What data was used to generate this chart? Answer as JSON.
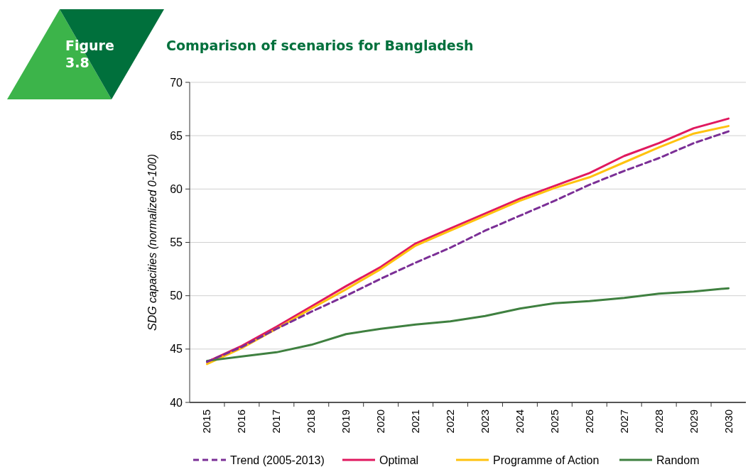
{
  "chart_data": {
    "type": "line",
    "title": "Comparison of scenarios for Bangladesh",
    "ylabel": "SDG capacities (normalized 0-100)",
    "annotations": [
      "Figure 3.8"
    ],
    "categories": [
      "2015",
      "2016",
      "2017",
      "2018",
      "2019",
      "2020",
      "2021",
      "2022",
      "2023",
      "2024",
      "2025",
      "2026",
      "2027",
      "2028",
      "2029",
      "2030"
    ],
    "ylim": [
      40,
      70
    ],
    "yticks": [
      40,
      45,
      50,
      55,
      60,
      65,
      70
    ],
    "grid": "y",
    "legend": "bottom",
    "series": [
      {
        "name": "Trend (2005-2013)",
        "color": "#7b2f96",
        "line_style": "dashed",
        "values": [
          43.8,
          45.2,
          46.9,
          48.5,
          50.0,
          51.6,
          53.1,
          54.5,
          56.1,
          57.5,
          58.9,
          60.4,
          61.7,
          62.9,
          64.3,
          65.4
        ]
      },
      {
        "name": "Optimal",
        "color": "#e0195f",
        "line_style": "solid",
        "values": [
          43.8,
          45.3,
          47.1,
          49.0,
          50.9,
          52.7,
          54.9,
          56.3,
          57.7,
          59.1,
          60.3,
          61.5,
          63.1,
          64.3,
          65.7,
          66.6
        ]
      },
      {
        "name": "Programme of Action",
        "color": "#ffc20e",
        "line_style": "solid",
        "values": [
          43.6,
          45.1,
          46.9,
          48.8,
          50.6,
          52.5,
          54.7,
          56.1,
          57.5,
          58.9,
          60.1,
          61.1,
          62.5,
          63.9,
          65.2,
          65.9
        ]
      },
      {
        "name": "Random",
        "color": "#3f8040",
        "line_style": "solid",
        "values": [
          43.9,
          44.3,
          44.7,
          45.4,
          46.4,
          46.9,
          47.3,
          47.6,
          48.1,
          48.8,
          49.3,
          49.5,
          49.8,
          50.2,
          50.4,
          50.7
        ]
      }
    ]
  }
}
